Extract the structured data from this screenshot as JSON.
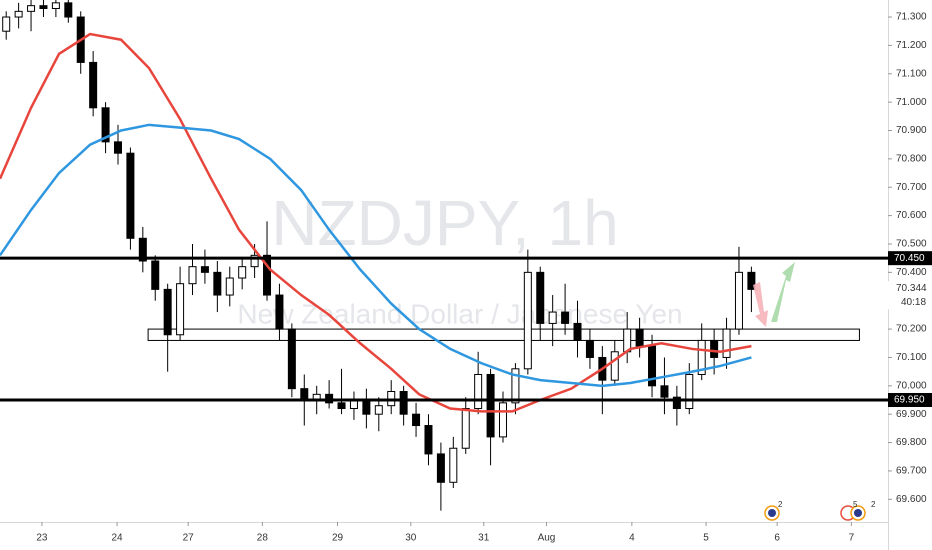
{
  "chart_data": {
    "type": "candlestick",
    "watermark_title": "NZDJPY, 1h",
    "watermark_subtitle": "New Zealand Dollar / Japanese Yen",
    "xlim": [
      0,
      286
    ],
    "ylim": [
      69.52,
      71.36
    ],
    "xticks": [
      {
        "value": 13.5,
        "label": "23"
      },
      {
        "value": 37.7,
        "label": "24"
      },
      {
        "value": 60.6,
        "label": "27"
      },
      {
        "value": 84.5,
        "label": "28"
      },
      {
        "value": 108.7,
        "label": "29"
      },
      {
        "value": 132.3,
        "label": "30"
      },
      {
        "value": 155.8,
        "label": "31"
      },
      {
        "value": 176,
        "label": "Aug"
      },
      {
        "value": 203.5,
        "label": "4"
      },
      {
        "value": 227.4,
        "label": "5"
      },
      {
        "value": 250.3,
        "label": "6"
      },
      {
        "value": 274.2,
        "label": "7"
      }
    ],
    "yticks": [
      {
        "value": 69.6,
        "label": "69.600"
      },
      {
        "value": 69.7,
        "label": "69.700"
      },
      {
        "value": 69.8,
        "label": "69.800"
      },
      {
        "value": 69.9,
        "label": "69.900"
      },
      {
        "value": 70.0,
        "label": "70.000"
      },
      {
        "value": 70.1,
        "label": "70.100"
      },
      {
        "value": 70.2,
        "label": "70.200"
      },
      {
        "value": 70.4,
        "label": "70.400"
      },
      {
        "value": 70.5,
        "label": "70.500"
      },
      {
        "value": 70.6,
        "label": "70.600"
      },
      {
        "value": 70.7,
        "label": "70.700"
      },
      {
        "value": 70.8,
        "label": "70.800"
      },
      {
        "value": 70.9,
        "label": "70.900"
      },
      {
        "value": 71.0,
        "label": "71.000"
      },
      {
        "value": 71.1,
        "label": "71.100"
      },
      {
        "value": 71.2,
        "label": "71.200"
      },
      {
        "value": 71.3,
        "label": "71.300"
      }
    ],
    "x": [
      2,
      6,
      10,
      14,
      18,
      22,
      26,
      30,
      34,
      38,
      42,
      46,
      50,
      54,
      58,
      62,
      66,
      70,
      74,
      78,
      82,
      86,
      90,
      94,
      98,
      102,
      106,
      110,
      114,
      118,
      122,
      126,
      130,
      134,
      138,
      142,
      146,
      150,
      154,
      158,
      162,
      166,
      170,
      174,
      178,
      182,
      186,
      190,
      194,
      198,
      202,
      206,
      210,
      214,
      218,
      222,
      226,
      230,
      234,
      238,
      242
    ],
    "open": [
      71.25,
      71.3,
      71.32,
      71.34,
      71.33,
      71.35,
      71.3,
      71.14,
      70.98,
      70.86,
      70.82,
      70.52,
      70.44,
      70.34,
      70.18,
      70.36,
      70.42,
      70.4,
      70.32,
      70.38,
      70.42,
      70.46,
      70.32,
      70.2,
      69.99,
      69.95,
      69.97,
      69.94,
      69.92,
      69.95,
      69.9,
      69.93,
      69.98,
      69.9,
      69.86,
      69.76,
      69.66,
      69.78,
      69.92,
      70.04,
      69.82,
      69.94,
      70.06,
      70.4,
      70.22,
      70.26,
      70.22,
      70.16,
      70.1,
      70.02,
      70.12,
      70.2,
      70.14,
      70.0,
      69.96,
      69.92,
      70.04,
      70.16,
      70.1,
      70.2,
      70.4
    ],
    "high": [
      71.32,
      71.35,
      71.36,
      71.36,
      71.36,
      71.36,
      71.32,
      71.18,
      71.0,
      70.92,
      70.84,
      70.56,
      70.46,
      70.36,
      70.42,
      70.5,
      70.48,
      70.44,
      70.42,
      70.45,
      70.5,
      70.58,
      70.36,
      70.22,
      70.04,
      70.0,
      70.02,
      70.06,
      69.98,
      69.99,
      69.96,
      70.02,
      70.0,
      69.94,
      69.9,
      69.8,
      69.82,
      69.96,
      70.12,
      70.06,
      69.98,
      70.08,
      70.48,
      70.42,
      70.32,
      70.36,
      70.3,
      70.2,
      70.14,
      70.16,
      70.26,
      70.24,
      70.18,
      70.1,
      70.0,
      70.08,
      70.22,
      70.2,
      70.24,
      70.49,
      70.42
    ],
    "low": [
      71.22,
      71.26,
      71.25,
      71.3,
      71.3,
      71.28,
      71.1,
      70.95,
      70.82,
      70.78,
      70.48,
      70.4,
      70.3,
      70.05,
      70.16,
      70.32,
      70.36,
      70.26,
      70.28,
      70.34,
      70.38,
      70.3,
      70.16,
      69.96,
      69.86,
      69.9,
      69.92,
      69.9,
      69.88,
      69.85,
      69.84,
      69.9,
      69.86,
      69.82,
      69.72,
      69.56,
      69.64,
      69.76,
      69.9,
      69.72,
      69.8,
      69.9,
      70.04,
      70.16,
      70.14,
      70.18,
      70.1,
      70.06,
      69.9,
      70.0,
      70.08,
      70.1,
      69.96,
      69.9,
      69.86,
      69.9,
      70.02,
      70.04,
      70.06,
      70.18,
      70.26
    ],
    "close": [
      71.3,
      71.32,
      71.34,
      71.33,
      71.35,
      71.3,
      71.14,
      70.98,
      70.86,
      70.82,
      70.52,
      70.44,
      70.34,
      70.18,
      70.36,
      70.42,
      70.4,
      70.32,
      70.38,
      70.42,
      70.46,
      70.32,
      70.2,
      69.99,
      69.95,
      69.97,
      69.94,
      69.92,
      69.95,
      69.9,
      69.93,
      69.98,
      69.9,
      69.86,
      69.76,
      69.66,
      69.78,
      69.92,
      70.04,
      69.82,
      69.94,
      70.06,
      70.4,
      70.22,
      70.26,
      70.22,
      70.16,
      70.1,
      70.02,
      70.12,
      70.2,
      70.14,
      70.0,
      69.96,
      69.92,
      70.04,
      70.16,
      70.1,
      70.2,
      70.4,
      70.34
    ],
    "up_color": "#ffffff",
    "down_color": "#000000",
    "overlays": [
      {
        "color": "#e8453c",
        "x": [
          0,
          10,
          19,
          29,
          39,
          48,
          58,
          68,
          77,
          87,
          97,
          106,
          116,
          126,
          135,
          145,
          155,
          165,
          174,
          184,
          194,
          203,
          213,
          223,
          232,
          242
        ],
        "values": [
          70.73,
          70.98,
          71.17,
          71.24,
          71.22,
          71.12,
          70.94,
          70.73,
          70.55,
          70.41,
          70.32,
          70.25,
          70.15,
          70.06,
          69.97,
          69.92,
          69.91,
          69.91,
          69.95,
          69.99,
          70.06,
          70.13,
          70.15,
          70.13,
          70.12,
          70.14
        ]
      },
      {
        "color": "#2e97e0",
        "x": [
          0,
          10,
          19,
          29,
          39,
          48,
          58,
          68,
          77,
          87,
          97,
          106,
          116,
          126,
          135,
          145,
          155,
          165,
          174,
          184,
          194,
          203,
          213,
          223,
          232,
          242
        ],
        "values": [
          70.46,
          70.62,
          70.75,
          70.85,
          70.9,
          70.92,
          70.91,
          70.9,
          70.87,
          70.8,
          70.69,
          70.55,
          70.41,
          70.29,
          70.2,
          70.13,
          70.08,
          70.04,
          70.02,
          70.01,
          70.0,
          70.01,
          70.03,
          70.05,
          70.07,
          70.1
        ]
      }
    ],
    "levels": [
      {
        "value": 70.45,
        "label": "70.450"
      },
      {
        "value": 69.95,
        "label": "69.950"
      }
    ],
    "zone": {
      "x": [
        47.7,
        276.8
      ],
      "y": [
        70.16,
        70.2
      ]
    },
    "last_price": {
      "value": 70.344,
      "label": "70.344"
    },
    "countdown": "40:18",
    "event_badges": [
      "2",
      "5",
      "2"
    ]
  }
}
